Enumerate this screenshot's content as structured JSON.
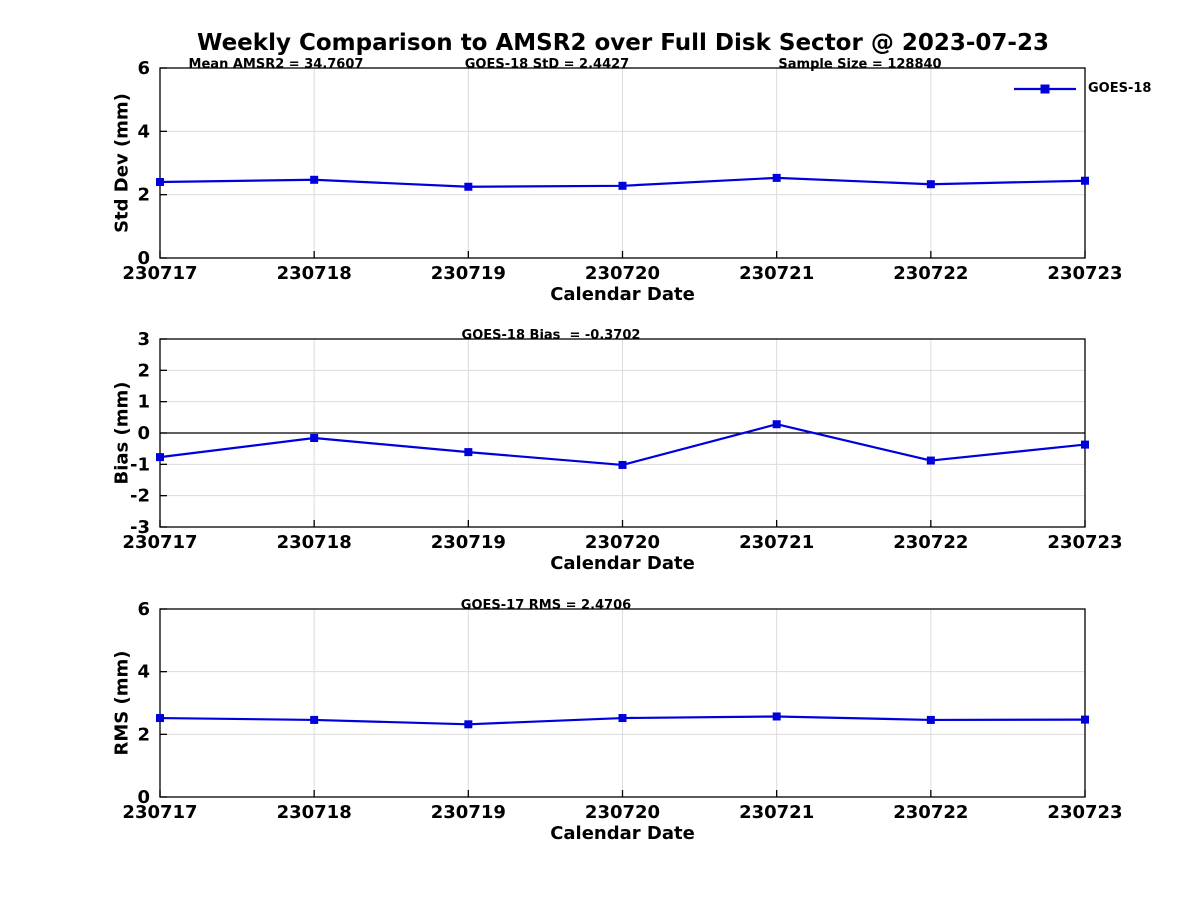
{
  "title": "Weekly Comparison to AMSR2 over Full Disk Sector @ 2023-07-23",
  "legend": {
    "label": "GOES-18"
  },
  "colors": {
    "line": "#0000DD",
    "marker": "#0000DD",
    "grid": "#DCDCDC",
    "axis": "#000000",
    "zero_line": "#000000",
    "background": "#FFFFFF"
  },
  "chart_data": [
    {
      "type": "line",
      "annotations": [
        "Mean AMSR2 = 34.7607",
        "GOES-18 StD = 2.4427",
        "Sample Size = 128840"
      ],
      "xlabel": "Calendar Date",
      "ylabel": "Std Dev (mm)",
      "categories": [
        "230717",
        "230718",
        "230719",
        "230720",
        "230721",
        "230722",
        "230723"
      ],
      "series": [
        {
          "name": "GOES-18",
          "values": [
            2.4,
            2.47,
            2.25,
            2.28,
            2.53,
            2.33,
            2.44
          ]
        }
      ],
      "ylim": [
        0,
        6
      ],
      "yticks": [
        0,
        2,
        4,
        6
      ],
      "grid": true,
      "zero_line": false,
      "legend_position": "top-right-outside"
    },
    {
      "type": "line",
      "annotations": [
        "GOES-18 Bias  = -0.3702"
      ],
      "xlabel": "Calendar Date",
      "ylabel": "Bias (mm)",
      "categories": [
        "230717",
        "230718",
        "230719",
        "230720",
        "230721",
        "230722",
        "230723"
      ],
      "series": [
        {
          "name": "GOES-18",
          "values": [
            -0.77,
            -0.16,
            -0.61,
            -1.02,
            0.28,
            -0.88,
            -0.37
          ]
        }
      ],
      "ylim": [
        -3,
        3
      ],
      "yticks": [
        -3,
        -2,
        -1,
        0,
        1,
        2,
        3
      ],
      "grid": true,
      "zero_line": true,
      "legend_position": "none"
    },
    {
      "type": "line",
      "annotations": [
        "GOES-17 RMS = 2.4706"
      ],
      "xlabel": "Calendar Date",
      "ylabel": "RMS (mm)",
      "categories": [
        "230717",
        "230718",
        "230719",
        "230720",
        "230721",
        "230722",
        "230723"
      ],
      "series": [
        {
          "name": "GOES-18",
          "values": [
            2.52,
            2.46,
            2.32,
            2.52,
            2.57,
            2.46,
            2.47
          ]
        }
      ],
      "ylim": [
        0,
        6
      ],
      "yticks": [
        0,
        2,
        4,
        6
      ],
      "grid": true,
      "zero_line": false,
      "legend_position": "none"
    }
  ]
}
